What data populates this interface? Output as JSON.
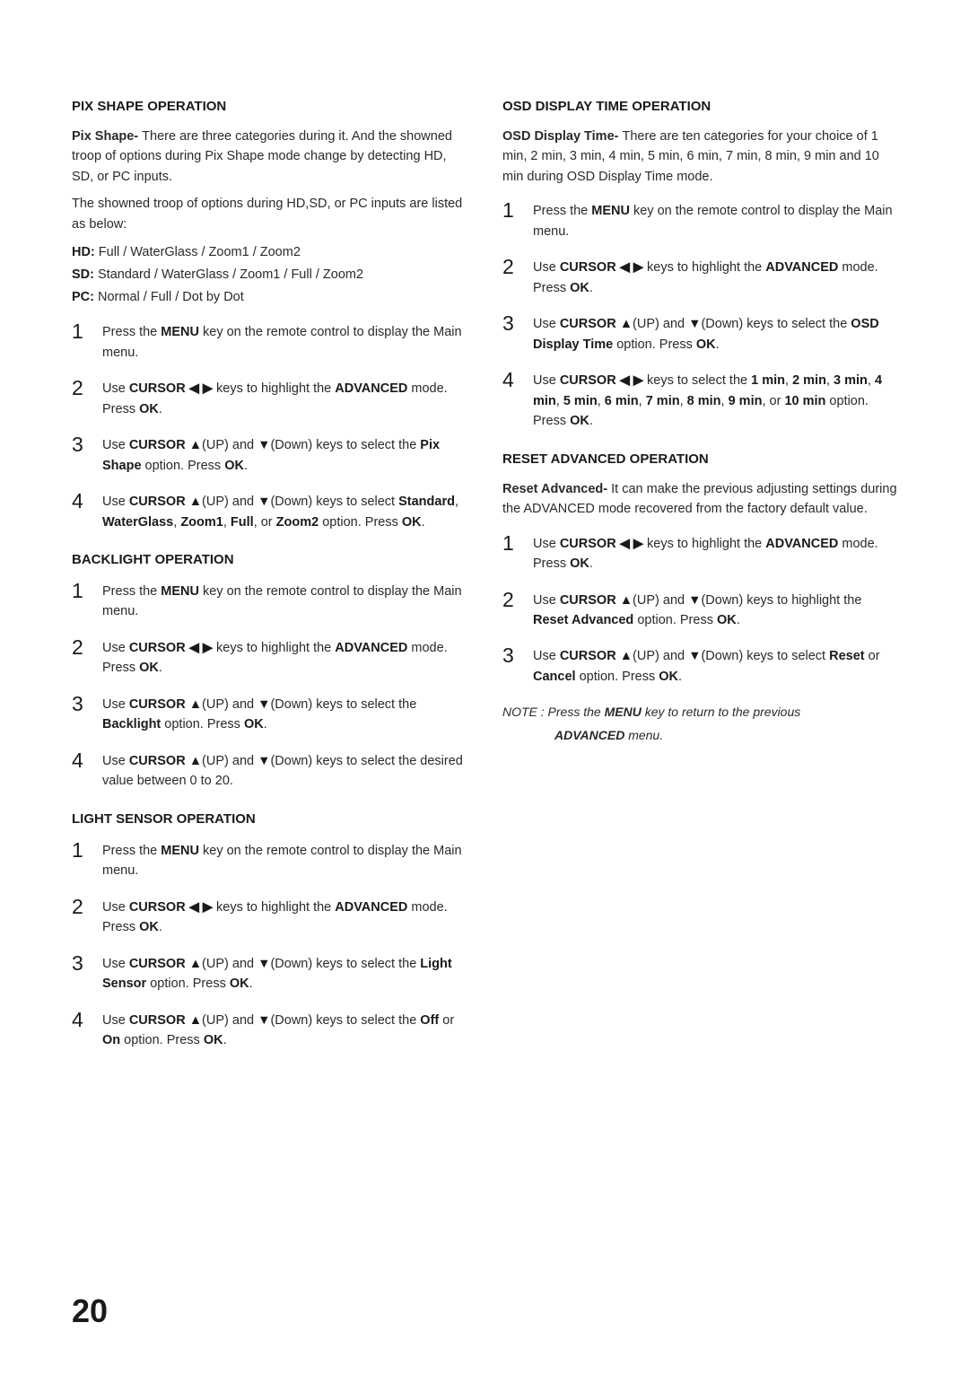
{
  "pageNumber": "20",
  "left": {
    "pixShape": {
      "title": "PIX SHAPE OPERATION",
      "intro1": "Pix Shape- There are three categories during it. And the showned troop of options during Pix Shape mode change by detecting HD, SD, or PC inputs.",
      "intro2": "The showned troop of options during HD,SD, or PC inputs are listed as below:",
      "hdLabel": "HD:",
      "hdValue": " Full / WaterGlass / Zoom1 / Zoom2",
      "sdLabel": "SD:",
      "sdValue": " Standard / WaterGlass / Zoom1 / Full / Zoom2",
      "pcLabel": "PC:",
      "pcValue": " Normal / Full / Dot by Dot",
      "steps": [
        "Press the <b>MENU</b> key on the remote control to display the Main menu.",
        "Use <b>CURSOR ◀ ▶</b> keys to highlight the <b>ADVANCED</b> mode. Press <b>OK</b>.",
        "Use <b>CURSOR ▲</b>(UP) and <b>▼</b>(Down) keys to select the <b>Pix Shape</b> option. Press <b>OK</b>.",
        "Use <b>CURSOR ▲</b>(UP) and <b>▼</b>(Down) keys to select <b>Standard</b>, <b>WaterGlass</b>, <b>Zoom1</b>, <b>Full</b>, or <b>Zoom2</b> option. Press <b>OK</b>."
      ]
    },
    "backlight": {
      "title": "BACKLIGHT OPERATION",
      "steps": [
        "Press the <b>MENU</b> key on the remote control to display the Main menu.",
        "Use <b>CURSOR ◀ ▶</b> keys to highlight the <b>ADVANCED</b> mode. Press <b>OK</b>.",
        "Use <b>CURSOR ▲</b>(UP) and <b>▼</b>(Down) keys to select the <b>Backlight</b> option. Press <b>OK</b>.",
        "Use <b>CURSOR ▲</b>(UP) and <b>▼</b>(Down) keys to select the desired value between 0 to 20."
      ]
    },
    "lightSensor": {
      "title": "LIGHT SENSOR OPERATION",
      "steps": [
        "Press the <b>MENU</b> key on the remote control to display the Main menu.",
        "Use <b>CURSOR ◀ ▶</b> keys to highlight the <b>ADVANCED</b> mode. Press <b>OK</b>.",
        "Use <b>CURSOR ▲</b>(UP) and <b>▼</b>(Down) keys to select the <b>Light Sensor</b> option. Press <b>OK</b>.",
        "Use <b>CURSOR ▲</b>(UP) and <b>▼</b>(Down) keys to select the <b>Off</b> or <b>On</b> option. Press <b>OK</b>."
      ]
    }
  },
  "right": {
    "osd": {
      "title": "OSD DISPLAY TIME OPERATION",
      "intro": "OSD Display Time- There are ten categories for your choice of 1 min, 2 min, 3 min, 4 min, 5 min, 6 min, 7 min, 8 min, 9 min and 10 min during OSD Display Time mode.",
      "steps": [
        "Press the <b>MENU</b> key on the remote control to display the Main menu.",
        "Use <b>CURSOR ◀ ▶</b> keys to highlight the <b>ADVANCED</b> mode. Press <b>OK</b>.",
        "Use <b>CURSOR ▲</b>(UP) and <b>▼</b>(Down) keys to select the <b>OSD Display Time</b> option. Press <b>OK</b>.",
        "Use <b>CURSOR ◀ ▶</b> keys to select the <b>1 min</b>, <b>2 min</b>, <b>3 min</b>, <b>4 min</b>, <b>5 min</b>, <b>6 min</b>, <b>7 min</b>, <b>8 min</b>, <b>9 min</b>, or <b>10 min</b> option. Press <b>OK</b>."
      ]
    },
    "reset": {
      "title": "RESET ADVANCED OPERATION",
      "intro": "Reset Advanced- It can make the previous adjusting settings during the ADVANCED mode recovered from the factory default value.",
      "steps": [
        "Use <b>CURSOR ◀ ▶</b> keys to highlight the <b>ADVANCED</b> mode. Press <b>OK</b>.",
        "Use <b>CURSOR ▲</b>(UP) and <b>▼</b>(Down) keys to highlight the <b>Reset Advanced</b> option. Press <b>OK</b>.",
        "Use <b>CURSOR ▲</b>(UP) and <b>▼</b>(Down) keys to select <b>Reset</b> or <b>Cancel</b> option. Press <b>OK</b>."
      ]
    },
    "note": "NOTE :  Press the <b>MENU</b> key to return to the previous<span class=\"indent\"><b>ADVANCED</b> menu.</span>"
  }
}
